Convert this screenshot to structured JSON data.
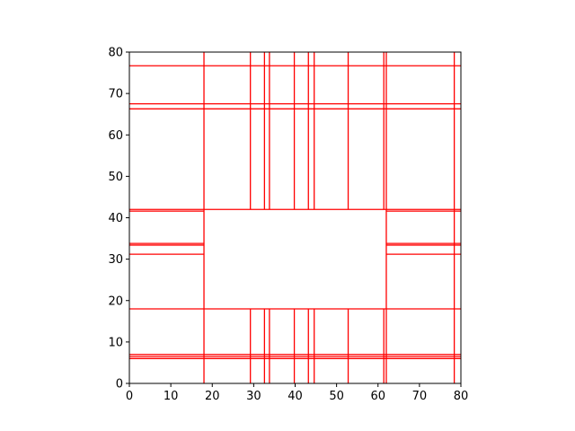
{
  "chart_data": {
    "type": "line",
    "title": "",
    "xlabel": "",
    "ylabel": "",
    "xlim": [
      0,
      80
    ],
    "ylim": [
      0,
      80
    ],
    "xticks": [
      "0",
      "10",
      "20",
      "30",
      "40",
      "50",
      "60",
      "70",
      "80"
    ],
    "yticks": [
      "0",
      "10",
      "20",
      "30",
      "40",
      "50",
      "60",
      "70",
      "80"
    ],
    "grid": false,
    "legend": "none",
    "line_color": "#ff0000",
    "series": [
      {
        "values": [
          {
            "x": [
              0,
              80
            ],
            "y": [
              76.7,
              76.7
            ]
          },
          {
            "x": [
              0,
              80
            ],
            "y": [
              67.5,
              67.5
            ]
          },
          {
            "x": [
              0,
              80
            ],
            "y": [
              66.3,
              66.3
            ]
          },
          {
            "x": [
              0,
              80
            ],
            "y": [
              18.0,
              18.0
            ]
          },
          {
            "x": [
              0,
              80
            ],
            "y": [
              7.0,
              7.0
            ]
          },
          {
            "x": [
              0,
              80
            ],
            "y": [
              6.5,
              6.5
            ]
          },
          {
            "x": [
              0,
              80
            ],
            "y": [
              6.0,
              6.0
            ]
          },
          {
            "x": [
              0,
              18.0
            ],
            "y": [
              42.0,
              42.0
            ]
          },
          {
            "x": [
              0,
              18.0
            ],
            "y": [
              41.6,
              41.6
            ]
          },
          {
            "x": [
              0,
              18.0
            ],
            "y": [
              33.8,
              33.8
            ]
          },
          {
            "x": [
              0,
              18.0
            ],
            "y": [
              33.4,
              33.4
            ]
          },
          {
            "x": [
              0,
              18.0
            ],
            "y": [
              31.2,
              31.2
            ]
          },
          {
            "x": [
              18.0,
              62.0
            ],
            "y": [
              42.0,
              42.0
            ]
          },
          {
            "x": [
              62.0,
              80
            ],
            "y": [
              42.0,
              42.0
            ]
          },
          {
            "x": [
              62.0,
              80
            ],
            "y": [
              41.6,
              41.6
            ]
          },
          {
            "x": [
              62.0,
              80
            ],
            "y": [
              33.8,
              33.8
            ]
          },
          {
            "x": [
              62.0,
              80
            ],
            "y": [
              33.4,
              33.4
            ]
          },
          {
            "x": [
              62.0,
              80
            ],
            "y": [
              31.2,
              31.2
            ]
          },
          {
            "x": [
              18.0,
              18.0
            ],
            "y": [
              0,
              80
            ]
          },
          {
            "x": [
              62.0,
              62.0
            ],
            "y": [
              0,
              80
            ]
          },
          {
            "x": [
              61.4,
              61.4
            ],
            "y": [
              0,
              18.0
            ]
          },
          {
            "x": [
              61.4,
              61.4
            ],
            "y": [
              42.0,
              80
            ]
          },
          {
            "x": [
              29.2,
              29.2
            ],
            "y": [
              0,
              18.0
            ]
          },
          {
            "x": [
              29.2,
              29.2
            ],
            "y": [
              42.0,
              80
            ]
          },
          {
            "x": [
              32.6,
              32.6
            ],
            "y": [
              0,
              18.0
            ]
          },
          {
            "x": [
              32.6,
              32.6
            ],
            "y": [
              42.0,
              80
            ]
          },
          {
            "x": [
              33.8,
              33.8
            ],
            "y": [
              0,
              18.0
            ]
          },
          {
            "x": [
              33.8,
              33.8
            ],
            "y": [
              42.0,
              80
            ]
          },
          {
            "x": [
              39.8,
              39.8
            ],
            "y": [
              0,
              18.0
            ]
          },
          {
            "x": [
              39.8,
              39.8
            ],
            "y": [
              42.0,
              80
            ]
          },
          {
            "x": [
              43.2,
              43.2
            ],
            "y": [
              0,
              18.0
            ]
          },
          {
            "x": [
              43.2,
              43.2
            ],
            "y": [
              42.0,
              80
            ]
          },
          {
            "x": [
              44.6,
              44.6
            ],
            "y": [
              0,
              18.0
            ]
          },
          {
            "x": [
              44.6,
              44.6
            ],
            "y": [
              42.0,
              80
            ]
          },
          {
            "x": [
              52.8,
              52.8
            ],
            "y": [
              0,
              18.0
            ]
          },
          {
            "x": [
              52.8,
              52.8
            ],
            "y": [
              42.0,
              80
            ]
          },
          {
            "x": [
              78.4,
              78.4
            ],
            "y": [
              0,
              80
            ]
          }
        ]
      }
    ]
  }
}
